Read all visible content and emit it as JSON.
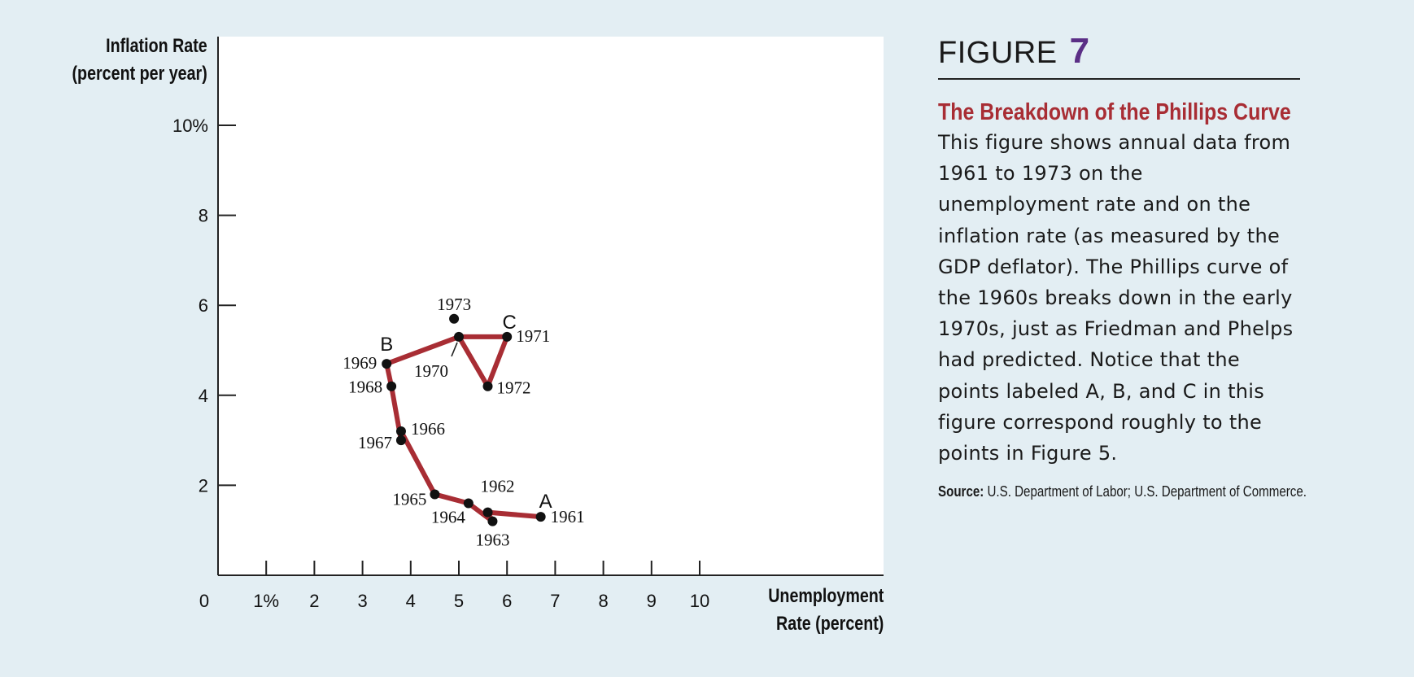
{
  "figure": {
    "label": "FIGURE",
    "number": "7",
    "title": "The Breakdown of the Phillips Curve",
    "body": "This figure shows annual data from 1961 to 1973 on the unemployment rate and on the inflation rate (as measured by the GDP deflator). The Phillips curve of the 1960s breaks down in the early 1970s, just as Friedman and Phelps had predicted. Notice that the points labeled A, B, and C in this figure correspond roughly to the points in Figure 5.",
    "source_label": "Source:",
    "source_text": " U.S. Department of Labor; U.S. Department of Commerce."
  },
  "colors": {
    "background": "#e3eef3",
    "plot_background": "#ffffff",
    "line": "#a82d34",
    "point": "#111111",
    "figure_number": "#5b2f86",
    "title": "#a82d34"
  },
  "chart_data": {
    "type": "line",
    "xlabel": [
      "Unemployment",
      "Rate (percent)"
    ],
    "ylabel": [
      "Inflation Rate",
      "(percent per year)"
    ],
    "xlim": [
      0,
      14
    ],
    "ylim": [
      0,
      12
    ],
    "x_ticks": [
      1,
      2,
      3,
      4,
      5,
      6,
      7,
      8,
      9,
      10
    ],
    "x_tick_labels": [
      "1%",
      "2",
      "3",
      "4",
      "5",
      "6",
      "7",
      "8",
      "9",
      "10"
    ],
    "y_ticks": [
      2,
      4,
      6,
      8,
      10
    ],
    "y_tick_labels": [
      "2",
      "4",
      "6",
      "8",
      "10%"
    ],
    "origin_label": "0",
    "grid": false,
    "series": [
      {
        "points": [
          {
            "year": "1961",
            "x": 6.7,
            "y": 1.3
          },
          {
            "year": "1962",
            "x": 5.6,
            "y": 1.4
          },
          {
            "year": "1963",
            "x": 5.7,
            "y": 1.2
          },
          {
            "year": "1964",
            "x": 5.2,
            "y": 1.6
          },
          {
            "year": "1965",
            "x": 4.5,
            "y": 1.8
          },
          {
            "year": "1966",
            "x": 3.8,
            "y": 3.2
          },
          {
            "year": "1967",
            "x": 3.8,
            "y": 3.0
          },
          {
            "year": "1968",
            "x": 3.6,
            "y": 4.2
          },
          {
            "year": "1969",
            "x": 3.5,
            "y": 4.7
          },
          {
            "year": "1970",
            "x": 5.0,
            "y": 5.3
          },
          {
            "year": "1971",
            "x": 6.0,
            "y": 5.3
          },
          {
            "year": "1972",
            "x": 5.6,
            "y": 4.2
          },
          {
            "year": "1973",
            "x": 4.9,
            "y": 5.7
          }
        ]
      }
    ],
    "annotations": [
      {
        "text": "A",
        "year": "1961"
      },
      {
        "text": "B",
        "year": "1969"
      },
      {
        "text": "C",
        "year": "1971"
      }
    ]
  }
}
